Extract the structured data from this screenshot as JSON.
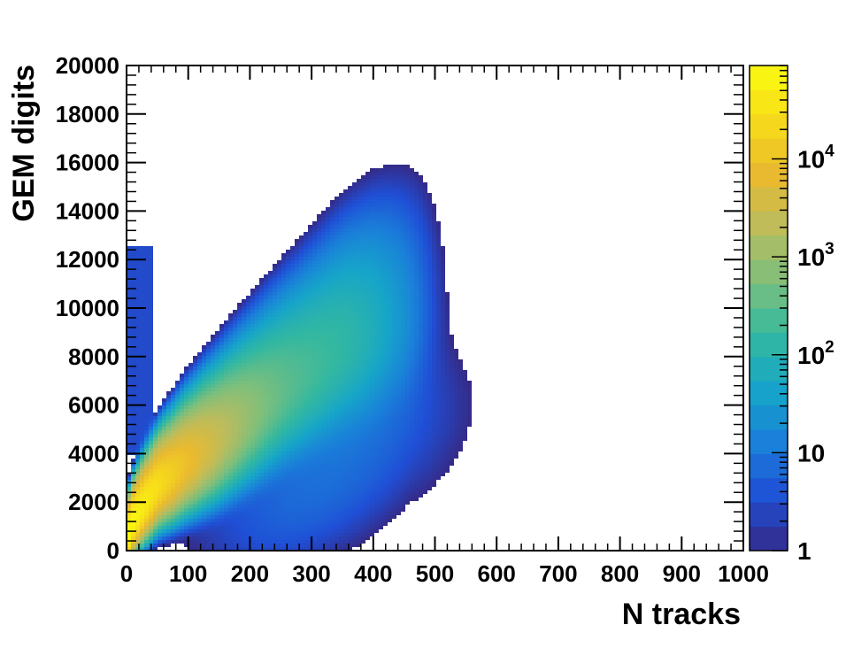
{
  "chart_data": {
    "type": "heatmap",
    "xlabel": "N tracks",
    "ylabel": "GEM digits",
    "xlim": [
      0,
      1000
    ],
    "ylim": [
      0,
      20000
    ],
    "x_ticks": [
      "0",
      "100",
      "200",
      "300",
      "400",
      "500",
      "600",
      "700",
      "800",
      "900",
      "1000"
    ],
    "y_ticks": [
      "0",
      "2000",
      "4000",
      "6000",
      "8000",
      "10000",
      "12000",
      "14000",
      "16000",
      "18000",
      "20000"
    ],
    "z_scale": "log",
    "zlim": [
      1,
      90000
    ],
    "colorbar_ticks": [
      {
        "value": 1,
        "label": "1"
      },
      {
        "value": 10,
        "label": "10"
      },
      {
        "value": 100,
        "base": "10",
        "exp": "2"
      },
      {
        "value": 1000,
        "base": "10",
        "exp": "3"
      },
      {
        "value": 10000,
        "base": "10",
        "exp": "4"
      }
    ],
    "palette": [
      "#352a87",
      "#1f4fd6",
      "#1a7fd9",
      "#16a5c9",
      "#33b8a0",
      "#7dbf7c",
      "#bcbc5c",
      "#eaba2e",
      "#f7dc1a",
      "#f9fb0e"
    ],
    "grid": false,
    "density_ridge": {
      "description_points": [
        {
          "x": 5,
          "y": 1000
        },
        {
          "x": 50,
          "y": 2600
        },
        {
          "x": 100,
          "y": 3600
        },
        {
          "x": 150,
          "y": 4500
        },
        {
          "x": 200,
          "y": 5500
        },
        {
          "x": 250,
          "y": 6500
        },
        {
          "x": 300,
          "y": 7400
        },
        {
          "x": 350,
          "y": 8300
        },
        {
          "x": 400,
          "y": 9000
        },
        {
          "x": 450,
          "y": 9600
        }
      ],
      "peak_counts": 90000
    }
  }
}
